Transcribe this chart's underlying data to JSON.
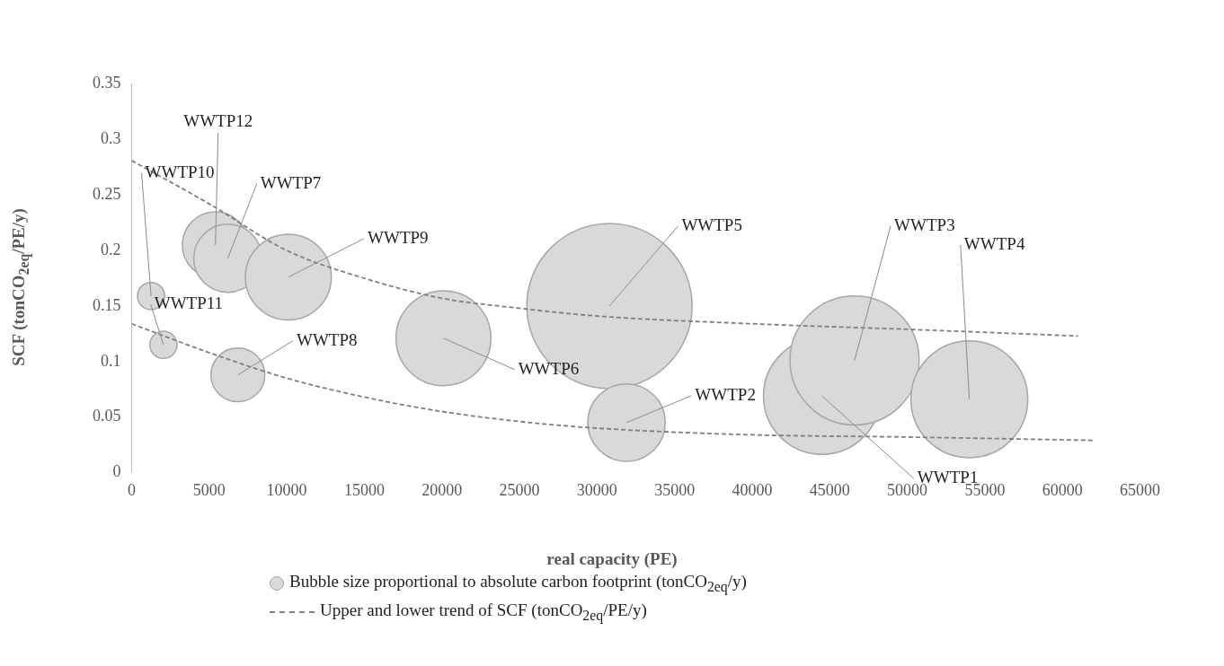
{
  "chart_data": {
    "type": "bubble",
    "xlabel": "real capacity (PE)",
    "ylabel": "SCF (tonCO$_{2eq}$/PE/y)",
    "xlim": [
      0,
      65000
    ],
    "xticks": [
      0,
      5000,
      10000,
      15000,
      20000,
      25000,
      30000,
      35000,
      40000,
      45000,
      50000,
      55000,
      60000,
      65000
    ],
    "ylim": [
      0,
      0.35
    ],
    "yticks": [
      0,
      0.05,
      0.1,
      0.15,
      0.2,
      0.25,
      0.3,
      0.35
    ],
    "grid": false,
    "legend": "bottom",
    "series": [
      {
        "name": "Bubble size proportional to absolute carbon footprint    (tonCO$_{2eq}$/y)",
        "color": "#d9d9d9",
        "x": [
          1250,
          2050,
          5400,
          6200,
          10100,
          6850,
          20100,
          30800,
          31900,
          44500,
          46600,
          54000
        ],
        "values": [
          0.159,
          0.115,
          0.205,
          0.193,
          0.176,
          0.088,
          0.121,
          0.15,
          0.045,
          0.069,
          0.101,
          0.066
        ],
        "sizes": [
          0.027,
          0.027,
          0.16,
          0.17,
          0.27,
          0.106,
          0.33,
          1,
          0.22,
          0.5,
          0.61,
          0.5
        ]
      },
      {
        "type": "line",
        "name": "Upper and lower trend of SCF (tonCO$_{2eq}$/PE/y)",
        "color": "#7f7f7f",
        "line_style": "dashed",
        "marker": "none",
        "x": [
          0,
          5000,
          10000,
          15000,
          20000,
          25000,
          30000,
          40000,
          50000,
          61000
        ],
        "values": [
          0.281,
          0.242,
          0.2,
          0.175,
          0.157,
          0.148,
          0.141,
          0.134,
          0.129,
          0.123
        ]
      },
      {
        "type": "line",
        "color": "#7f7f7f",
        "line_style": "dashed",
        "marker": "none",
        "x": [
          0,
          5000,
          10000,
          15000,
          20000,
          25000,
          30000,
          40000,
          50000,
          62000
        ],
        "values": [
          0.134,
          0.108,
          0.085,
          0.068,
          0.055,
          0.046,
          0.04,
          0.034,
          0.032,
          0.029
        ]
      }
    ],
    "annotations": [
      {
        "text": "WWTP10",
        "x": 1250,
        "y": 0.159
      },
      {
        "text": "WWTP11",
        "x": 2050,
        "y": 0.115
      },
      {
        "text": "WWTP12",
        "x": 5400,
        "y": 0.205
      },
      {
        "text": "WWTP7",
        "x": 6200,
        "y": 0.193
      },
      {
        "text": "WWTP9",
        "x": 10100,
        "y": 0.176
      },
      {
        "text": "WWTP8",
        "x": 6850,
        "y": 0.088
      },
      {
        "text": "WWTP6",
        "x": 20100,
        "y": 0.121
      },
      {
        "text": "WWTP5",
        "x": 30800,
        "y": 0.15
      },
      {
        "text": "WWTP2",
        "x": 31900,
        "y": 0.045
      },
      {
        "text": "WWTP1",
        "x": 44500,
        "y": 0.069
      },
      {
        "text": "WWTP3",
        "x": 46600,
        "y": 0.101
      },
      {
        "text": "WWTP4",
        "x": 54000,
        "y": 0.066
      }
    ]
  }
}
